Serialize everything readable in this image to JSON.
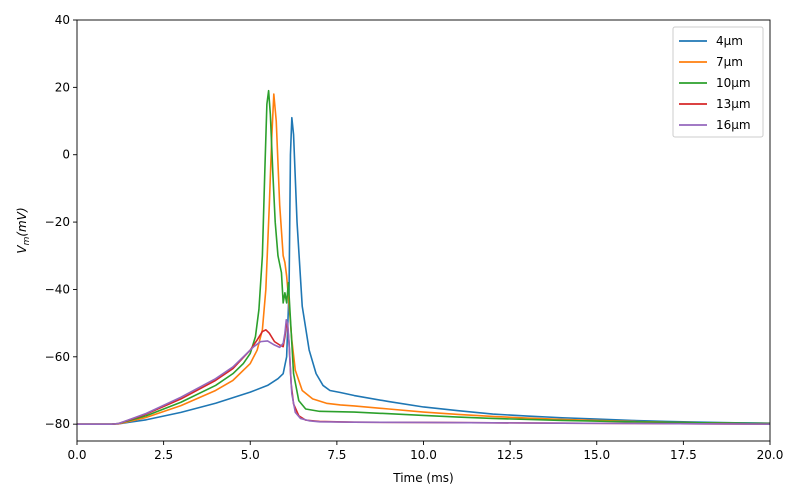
{
  "chart_data": {
    "type": "line",
    "title": "",
    "xlabel": "Time (ms)",
    "ylabel_main": "V",
    "ylabel_sub": "m",
    "ylabel_rest": "(mV)",
    "xlim": [
      0,
      20
    ],
    "ylim": [
      -85,
      40
    ],
    "xticks": [
      0,
      2.5,
      5,
      7.5,
      10,
      12.5,
      15,
      17.5,
      20
    ],
    "xtick_labels": [
      "0.0",
      "2.5",
      "5.0",
      "7.5",
      "10.0",
      "12.5",
      "15.0",
      "17.5",
      "20.0"
    ],
    "yticks": [
      -80,
      -60,
      -40,
      -20,
      0,
      20,
      40
    ],
    "ytick_labels": [
      "−80",
      "−60",
      "−40",
      "−20",
      "0",
      "20",
      "40"
    ],
    "grid": false,
    "legend_position": "top-right",
    "series": [
      {
        "name": "4μm",
        "color": "#1f77b4",
        "x": [
          0,
          1.0,
          1.2,
          2.0,
          3.0,
          4.0,
          5.0,
          5.5,
          5.8,
          5.95,
          6.05,
          6.12,
          6.16,
          6.2,
          6.25,
          6.35,
          6.5,
          6.7,
          6.9,
          7.1,
          7.3,
          7.6,
          8.0,
          9.0,
          10.0,
          11.0,
          12.0,
          13.0,
          14.0,
          15.0,
          16.0,
          17.0,
          18.0,
          19.0,
          20.0
        ],
        "y": [
          -80,
          -80,
          -79.9,
          -78.7,
          -76.5,
          -73.8,
          -70.5,
          -68.5,
          -66.5,
          -65,
          -60,
          -40,
          0,
          11,
          6,
          -20,
          -45,
          -58,
          -65,
          -68.5,
          -70,
          -70.6,
          -71.5,
          -73.3,
          -74.9,
          -76,
          -77,
          -77.6,
          -78.1,
          -78.5,
          -78.9,
          -79.2,
          -79.4,
          -79.6,
          -79.7
        ]
      },
      {
        "name": "7μm",
        "color": "#ff7f0e",
        "x": [
          0,
          1.0,
          1.2,
          2.0,
          3.0,
          4.0,
          4.5,
          5.0,
          5.2,
          5.35,
          5.45,
          5.55,
          5.62,
          5.68,
          5.75,
          5.85,
          5.95,
          6.0,
          6.05,
          6.1,
          6.2,
          6.3,
          6.5,
          6.8,
          7.2,
          7.6,
          8.0,
          9.0,
          10.0,
          11.0,
          12.0,
          13.0,
          14.0,
          15.0,
          16.0,
          17.0,
          18.0,
          19.0,
          20.0
        ],
        "y": [
          -80,
          -80,
          -79.9,
          -78,
          -74.5,
          -70,
          -67,
          -62,
          -58,
          -52,
          -40,
          -15,
          5,
          18,
          10,
          -15,
          -30,
          -32,
          -36,
          -42,
          -55,
          -64,
          -70,
          -72.5,
          -73.8,
          -74.3,
          -74.6,
          -75.5,
          -76.4,
          -77.1,
          -77.7,
          -78.2,
          -78.6,
          -78.9,
          -79.2,
          -79.4,
          -79.6,
          -79.7,
          -79.8
        ]
      },
      {
        "name": "10μm",
        "color": "#2ca02c",
        "x": [
          0,
          1.0,
          1.2,
          2.0,
          3.0,
          4.0,
          4.5,
          4.8,
          5.0,
          5.15,
          5.25,
          5.35,
          5.42,
          5.48,
          5.53,
          5.58,
          5.65,
          5.72,
          5.8,
          5.9,
          5.95,
          6.0,
          6.05,
          6.1,
          6.15,
          6.25,
          6.4,
          6.6,
          7.0,
          7.5,
          8.0,
          9.0,
          10.0,
          11.0,
          12.0,
          14.0,
          16.0,
          18.0,
          20.0
        ],
        "y": [
          -80,
          -80,
          -79.8,
          -77.5,
          -73.5,
          -68.5,
          -65,
          -62,
          -59,
          -54,
          -46,
          -30,
          -5,
          15,
          19,
          12,
          -5,
          -20,
          -30,
          -35,
          -44,
          -41,
          -44,
          -38,
          -47,
          -65,
          -73,
          -75.5,
          -76.2,
          -76.3,
          -76.4,
          -76.9,
          -77.4,
          -77.9,
          -78.3,
          -78.9,
          -79.3,
          -79.6,
          -79.8
        ]
      },
      {
        "name": "13μm",
        "color": "#d62728",
        "x": [
          0,
          1.0,
          1.2,
          2.0,
          3.0,
          4.0,
          4.5,
          5.0,
          5.2,
          5.35,
          5.45,
          5.55,
          5.7,
          5.85,
          5.95,
          6.0,
          6.05,
          6.08,
          6.12,
          6.18,
          6.25,
          6.4,
          6.6,
          7.0,
          8.0,
          10.0,
          12.0,
          14.0,
          16.0,
          18.0,
          20.0
        ],
        "y": [
          -80,
          -80,
          -79.8,
          -77,
          -72.5,
          -67,
          -63.5,
          -58,
          -55,
          -52.5,
          -52,
          -53,
          -55.5,
          -56.5,
          -57,
          -54,
          -50,
          -51,
          -56,
          -68,
          -74,
          -77.5,
          -78.8,
          -79.2,
          -79.4,
          -79.5,
          -79.6,
          -79.7,
          -79.8,
          -79.9,
          -80
        ]
      },
      {
        "name": "16μm",
        "color": "#9467bd",
        "x": [
          0,
          1.0,
          1.2,
          2.0,
          3.0,
          4.0,
          4.5,
          4.9,
          5.1,
          5.3,
          5.5,
          5.7,
          5.85,
          5.95,
          6.0,
          6.04,
          6.08,
          6.12,
          6.16,
          6.2,
          6.3,
          6.45,
          6.7,
          7.0,
          8.0,
          10.0,
          12.0,
          14.0,
          16.0,
          18.0,
          20.0
        ],
        "y": [
          -80,
          -80,
          -79.8,
          -76.8,
          -72,
          -66.5,
          -63,
          -59,
          -57,
          -55.5,
          -55.3,
          -56.5,
          -57.2,
          -56,
          -53,
          -49,
          -50,
          -56,
          -64,
          -71,
          -76.5,
          -78.3,
          -79,
          -79.3,
          -79.4,
          -79.5,
          -79.6,
          -79.7,
          -79.8,
          -79.9,
          -80
        ]
      }
    ]
  }
}
